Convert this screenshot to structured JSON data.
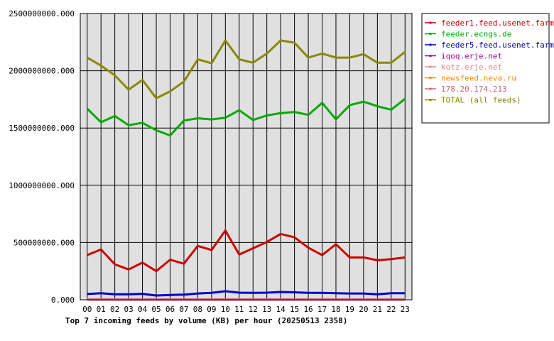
{
  "chart_data": {
    "type": "line",
    "title": "Top 7 incoming feeds by volume (KB) per hour (20250513 2358)",
    "categories": [
      "00",
      "01",
      "02",
      "03",
      "04",
      "05",
      "06",
      "07",
      "08",
      "09",
      "10",
      "11",
      "12",
      "13",
      "14",
      "15",
      "16",
      "17",
      "18",
      "19",
      "20",
      "21",
      "22",
      "23"
    ],
    "yticks": [
      "0.000",
      "500000000.000",
      "1000000000.000",
      "1500000000.000",
      "2000000000.000",
      "2500000000.000"
    ],
    "ylim": [
      0,
      2500000000
    ],
    "grid": true,
    "legend_position": "top-right",
    "series": [
      {
        "name": "feeder1.feed.usenet.farm",
        "color": "#cc0000",
        "values": [
          390000000,
          440000000,
          310000000,
          265000000,
          325000000,
          250000000,
          350000000,
          315000000,
          470000000,
          435000000,
          605000000,
          395000000,
          450000000,
          505000000,
          575000000,
          545000000,
          455000000,
          390000000,
          485000000,
          370000000,
          370000000,
          345000000,
          355000000,
          370000000
        ]
      },
      {
        "name": "feeder.ecngs.de",
        "color": "#00aa00",
        "values": [
          1670000000,
          1550000000,
          1605000000,
          1525000000,
          1545000000,
          1480000000,
          1435000000,
          1565000000,
          1585000000,
          1575000000,
          1590000000,
          1655000000,
          1570000000,
          1610000000,
          1630000000,
          1640000000,
          1615000000,
          1720000000,
          1575000000,
          1700000000,
          1730000000,
          1690000000,
          1660000000,
          1755000000
        ]
      },
      {
        "name": "feeder5.feed.usenet.farm",
        "color": "#0000cc",
        "values": [
          50000000,
          57000000,
          48000000,
          48000000,
          52000000,
          37000000,
          42000000,
          45000000,
          55000000,
          60000000,
          75000000,
          62000000,
          60000000,
          62000000,
          68000000,
          65000000,
          60000000,
          60000000,
          58000000,
          55000000,
          55000000,
          48000000,
          58000000,
          58000000
        ]
      },
      {
        "name": "iqoq.erje.net",
        "color": "#aa00aa",
        "values": [
          1000000,
          1000000,
          1000000,
          1000000,
          1000000,
          1000000,
          1000000,
          1000000,
          1000000,
          1000000,
          1000000,
          1000000,
          1000000,
          1000000,
          1000000,
          1000000,
          1000000,
          1000000,
          1000000,
          1000000,
          1000000,
          1000000,
          1000000,
          1000000
        ]
      },
      {
        "name": "kotz.erje.net",
        "color": "#ee8888",
        "values": [
          2000000,
          2000000,
          2000000,
          2000000,
          2000000,
          2000000,
          2000000,
          2000000,
          2000000,
          2000000,
          2000000,
          2000000,
          2000000,
          2000000,
          2000000,
          2000000,
          2000000,
          2000000,
          2000000,
          2000000,
          2000000,
          2000000,
          2000000,
          2000000
        ]
      },
      {
        "name": "newsfeed.neva.ru",
        "color": "#ff8800",
        "values": [
          3000000,
          3000000,
          3000000,
          3000000,
          3000000,
          3000000,
          3000000,
          3000000,
          3000000,
          3000000,
          3000000,
          3000000,
          3000000,
          3000000,
          3000000,
          3000000,
          3000000,
          3000000,
          3000000,
          3000000,
          3000000,
          3000000,
          3000000,
          3000000
        ]
      },
      {
        "name": "178.20.174.213",
        "color": "#cc6677",
        "values": [
          4000000,
          4000000,
          4000000,
          4000000,
          4000000,
          4000000,
          4000000,
          4000000,
          4000000,
          4000000,
          4000000,
          4000000,
          4000000,
          4000000,
          4000000,
          4000000,
          4000000,
          4000000,
          4000000,
          4000000,
          4000000,
          4000000,
          4000000,
          4000000
        ]
      },
      {
        "name": "TOTAL (all feeds)",
        "color": "#888800",
        "values": [
          2115000000,
          2045000000,
          1960000000,
          1835000000,
          1920000000,
          1760000000,
          1820000000,
          1905000000,
          2100000000,
          2065000000,
          2265000000,
          2100000000,
          2070000000,
          2150000000,
          2265000000,
          2245000000,
          2115000000,
          2150000000,
          2115000000,
          2115000000,
          2145000000,
          2070000000,
          2070000000,
          2165000000
        ]
      }
    ]
  }
}
